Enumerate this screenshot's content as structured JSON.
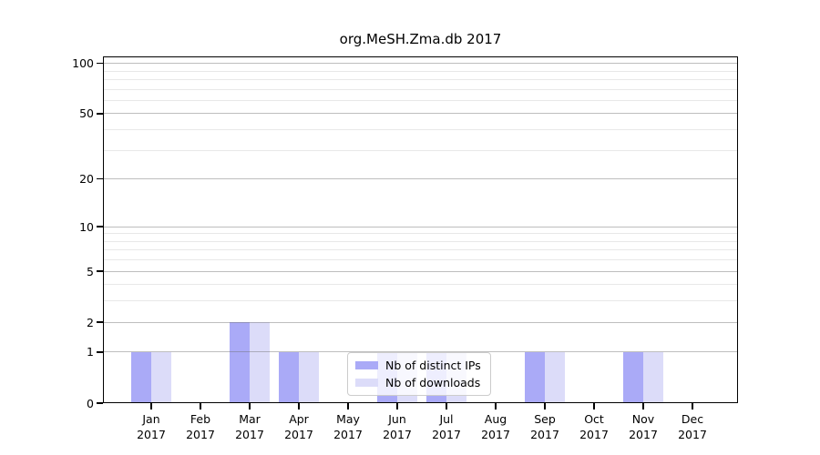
{
  "page": {
    "background": "#ffffff"
  },
  "chart_data": {
    "type": "bar",
    "title": "org.MeSH.Zma.db 2017",
    "categories": [
      "Jan",
      "Feb",
      "Mar",
      "Apr",
      "May",
      "Jun",
      "Jul",
      "Aug",
      "Sep",
      "Oct",
      "Nov",
      "Dec"
    ],
    "x_tick_second_line": "2017",
    "series": [
      {
        "name": "Nb of distinct IPs",
        "color": "#aaaaf7",
        "values": [
          1,
          0,
          2,
          1,
          0,
          1,
          1,
          0,
          1,
          0,
          1,
          0
        ]
      },
      {
        "name": "Nb of downloads",
        "color": "#dcdcf9",
        "values": [
          1,
          0,
          2,
          1,
          0,
          1,
          1,
          0,
          1,
          0,
          1,
          0
        ]
      }
    ],
    "xlabel": "",
    "ylabel": "",
    "yscale": "log1p",
    "ylim": [
      0,
      110
    ],
    "y_major_ticks": [
      0,
      1,
      2,
      5,
      10,
      20,
      50,
      100
    ],
    "y_minor_gridlines": [
      3,
      4,
      6,
      7,
      8,
      9,
      30,
      40,
      60,
      70,
      80,
      90
    ],
    "grid": "horizontal",
    "grid_above_bars": true,
    "legend_position": "lower-center-inside",
    "axis_color": "#000000",
    "major_grid_color": "rgba(110,110,110,0.45)",
    "minor_grid_color": "rgba(190,190,190,0.35)"
  }
}
